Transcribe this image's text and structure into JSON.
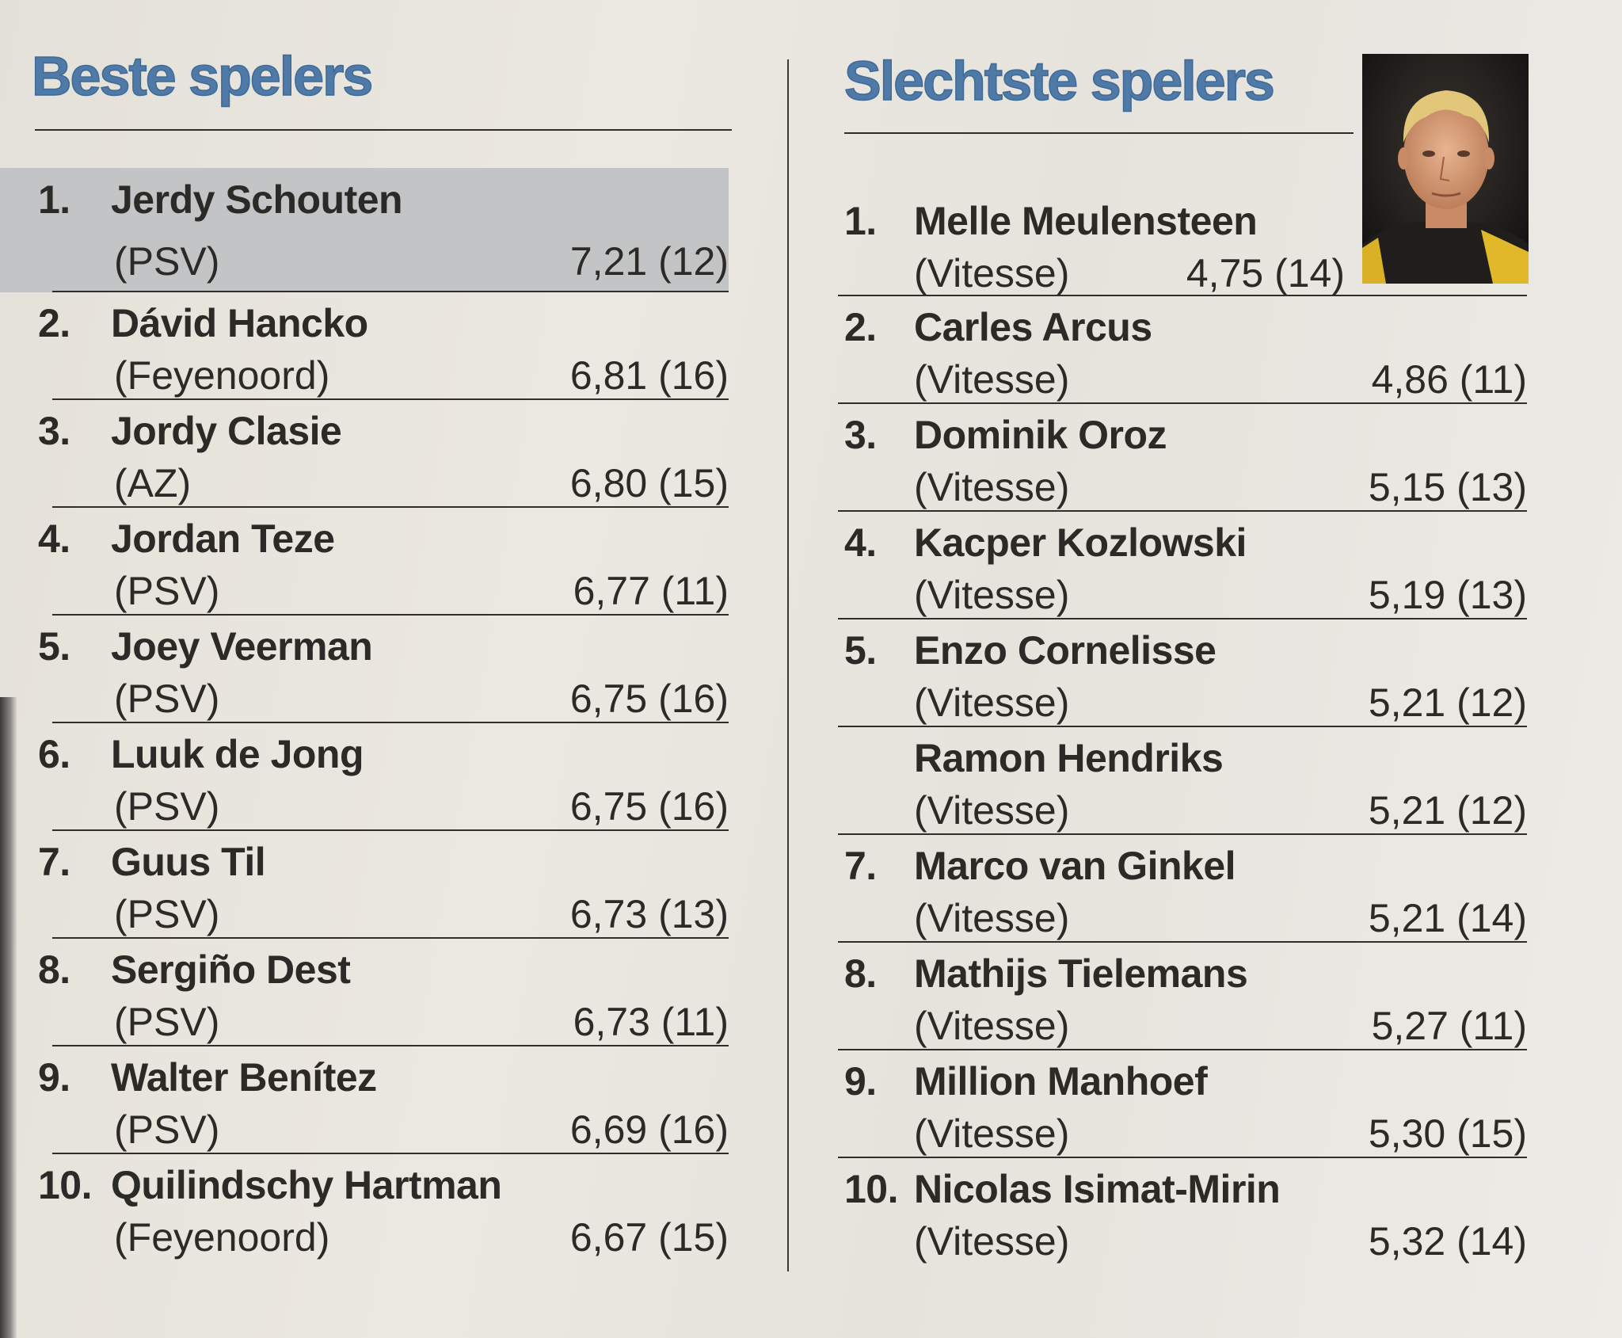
{
  "best": {
    "heading": "Beste spelers",
    "items": [
      {
        "rank": "1.",
        "name": "Jerdy Schouten",
        "club": "(PSV)",
        "score": "7,21 (12)"
      },
      {
        "rank": "2.",
        "name": "Dávid Hancko",
        "club": "(Feyenoord)",
        "score": "6,81 (16)"
      },
      {
        "rank": "3.",
        "name": "Jordy Clasie",
        "club": "(AZ)",
        "score": "6,80 (15)"
      },
      {
        "rank": "4.",
        "name": "Jordan Teze",
        "club": "(PSV)",
        "score": "6,77 (11)"
      },
      {
        "rank": "5.",
        "name": "Joey Veerman",
        "club": "(PSV)",
        "score": "6,75 (16)"
      },
      {
        "rank": "6.",
        "name": "Luuk de Jong",
        "club": "(PSV)",
        "score": "6,75 (16)"
      },
      {
        "rank": "7.",
        "name": "Guus Til",
        "club": "(PSV)",
        "score": "6,73 (13)"
      },
      {
        "rank": "8.",
        "name": "Sergiño Dest",
        "club": "(PSV)",
        "score": "6,73 (11)"
      },
      {
        "rank": "9.",
        "name": "Walter Benítez",
        "club": "(PSV)",
        "score": "6,69 (16)"
      },
      {
        "rank": "10.",
        "name": "Quilindschy Hartman",
        "club": "(Feyenoord)",
        "score": "6,67 (15)"
      }
    ]
  },
  "worst": {
    "heading": "Slechtste spelers",
    "items": [
      {
        "rank": "1.",
        "name": "Melle Meulensteen",
        "club": "(Vitesse)",
        "score": "4,75 (14)"
      },
      {
        "rank": "2.",
        "name": "Carles Arcus",
        "club": "(Vitesse)",
        "score": "4,86 (11)"
      },
      {
        "rank": "3.",
        "name": "Dominik Oroz",
        "club": "(Vitesse)",
        "score": "5,15 (13)"
      },
      {
        "rank": "4.",
        "name": "Kacper Kozlowski",
        "club": "(Vitesse)",
        "score": "5,19 (13)"
      },
      {
        "rank": "5.",
        "name": "Enzo Cornelisse",
        "club": "(Vitesse)",
        "score": "5,21 (12)"
      },
      {
        "rank": "",
        "name": "Ramon Hendriks",
        "club": "(Vitesse)",
        "score": "5,21 (12)"
      },
      {
        "rank": "7.",
        "name": "Marco van Ginkel",
        "club": "(Vitesse)",
        "score": "5,21 (14)"
      },
      {
        "rank": "8.",
        "name": "Mathijs Tielemans",
        "club": "(Vitesse)",
        "score": "5,27 (11)"
      },
      {
        "rank": "9.",
        "name": "Million Manhoef",
        "club": "(Vitesse)",
        "score": "5,30 (15)"
      },
      {
        "rank": "10.",
        "name": "Nicolas Isimat-Mirin",
        "club": "(Vitesse)",
        "score": "5,32 (14)"
      }
    ]
  },
  "colors": {
    "heading": "#4f79a6",
    "highlight": "#c3c4c5",
    "text": "#2b2a27"
  }
}
